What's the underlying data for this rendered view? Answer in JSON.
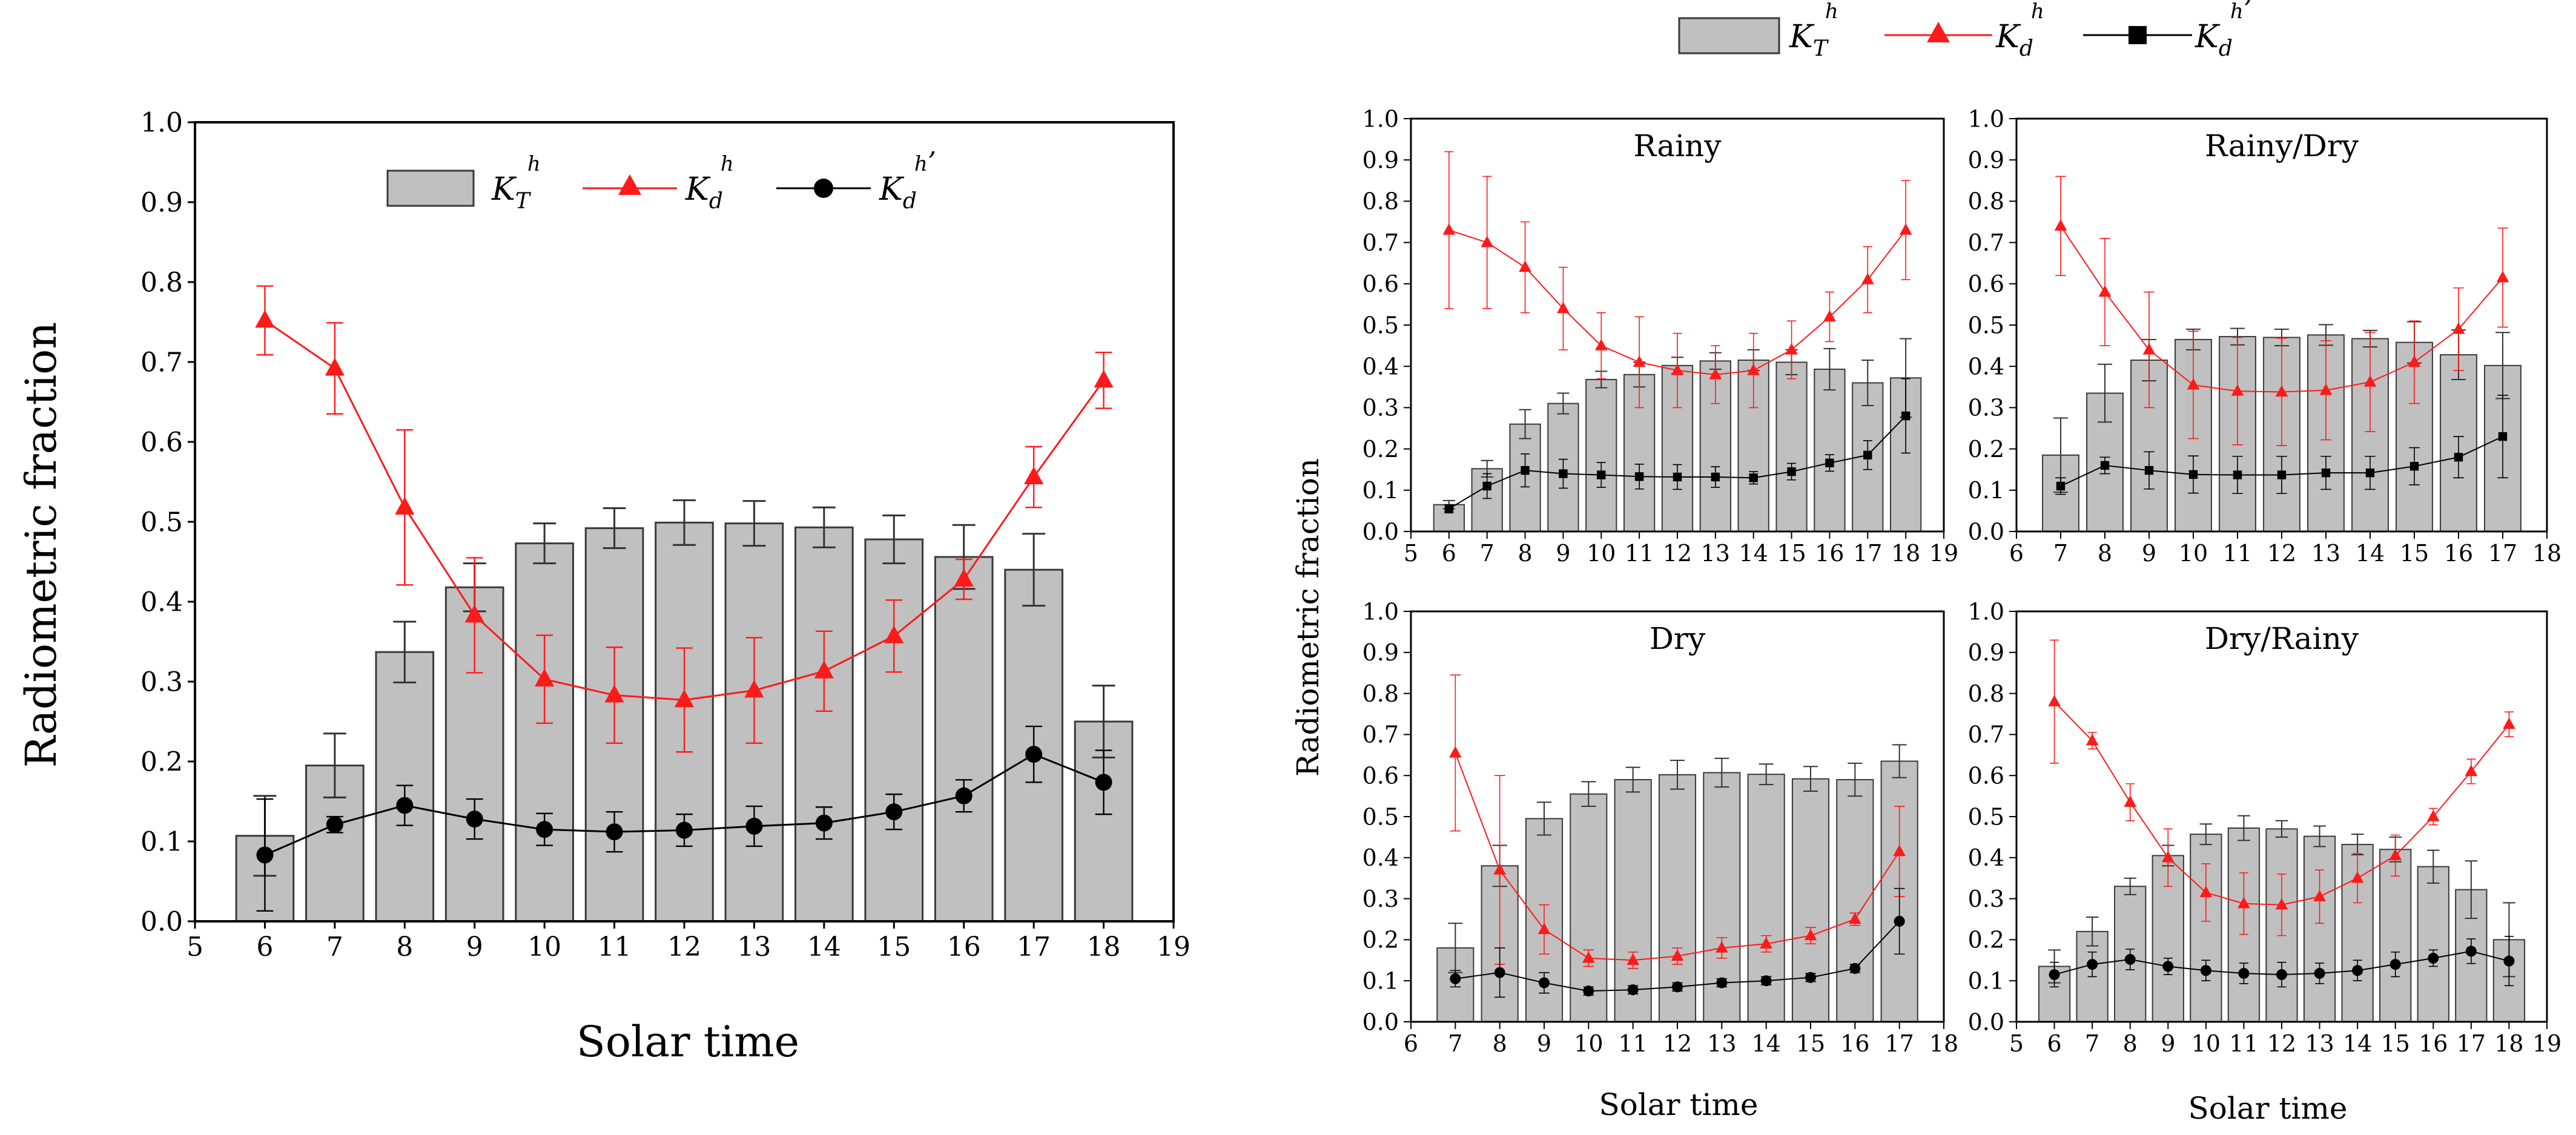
{
  "legend": {
    "kt_main": "K",
    "kt_sub": "T",
    "kt_sup": "h",
    "kd_main": "K",
    "kd_sub": "d",
    "kd_sup": "h",
    "kd2_main": "K",
    "kd2_sub": "d",
    "kd2_sup": "h",
    "prime": "’"
  },
  "colors": {
    "bar_fill": "#c0c0c0",
    "bar_stroke": "#3a3a3a",
    "kd_color": "#ff1a1a",
    "kd2_color": "#000000"
  },
  "chart_data": [
    {
      "type": "bar",
      "id": "overall",
      "title": "",
      "xlabel": "Solar time",
      "ylabel": "Radiometric fraction",
      "xlim": [
        5,
        19
      ],
      "ylim": [
        0.0,
        1.0
      ],
      "xticks": [
        5,
        6,
        7,
        8,
        9,
        10,
        11,
        12,
        13,
        14,
        15,
        16,
        17,
        18,
        19
      ],
      "yticks": [
        "0.0",
        "0.1",
        "0.2",
        "0.3",
        "0.4",
        "0.5",
        "0.6",
        "0.7",
        "0.8",
        "0.9",
        "1.0"
      ],
      "legend_position": "top-center",
      "series": [
        {
          "name": "KT",
          "kind": "bar",
          "x": [
            6,
            7,
            8,
            9,
            10,
            11,
            12,
            13,
            14,
            15,
            16,
            17,
            18
          ],
          "values": [
            0.107,
            0.195,
            0.337,
            0.418,
            0.473,
            0.492,
            0.499,
            0.498,
            0.493,
            0.478,
            0.456,
            0.44,
            0.25
          ],
          "err": [
            0.05,
            0.04,
            0.038,
            0.03,
            0.025,
            0.025,
            0.028,
            0.028,
            0.025,
            0.03,
            0.04,
            0.045,
            0.045
          ]
        },
        {
          "name": "Kd",
          "kind": "line",
          "marker": "triangle",
          "x": [
            6,
            7,
            8,
            9,
            10,
            11,
            12,
            13,
            14,
            15,
            16,
            17,
            18
          ],
          "values": [
            0.752,
            0.692,
            0.518,
            0.383,
            0.303,
            0.283,
            0.277,
            0.289,
            0.313,
            0.357,
            0.428,
            0.556,
            0.677
          ],
          "err": [
            0.043,
            0.057,
            0.097,
            0.072,
            0.055,
            0.06,
            0.065,
            0.066,
            0.05,
            0.045,
            0.025,
            0.038,
            0.035
          ]
        },
        {
          "name": "Kd'",
          "kind": "line",
          "marker": "circle",
          "x": [
            6,
            7,
            8,
            9,
            10,
            11,
            12,
            13,
            14,
            15,
            16,
            17,
            18
          ],
          "values": [
            0.083,
            0.121,
            0.145,
            0.128,
            0.115,
            0.112,
            0.114,
            0.119,
            0.123,
            0.137,
            0.157,
            0.209,
            0.174
          ],
          "err": [
            0.07,
            0.01,
            0.025,
            0.025,
            0.02,
            0.025,
            0.02,
            0.025,
            0.02,
            0.022,
            0.02,
            0.035,
            0.04
          ]
        }
      ]
    },
    {
      "type": "bar",
      "id": "rainy",
      "title": "Rainy",
      "xlabel": "",
      "ylabel": "",
      "xlim": [
        5,
        19
      ],
      "ylim": [
        0.0,
        1.0
      ],
      "xticks": [
        5,
        6,
        7,
        8,
        9,
        10,
        11,
        12,
        13,
        14,
        15,
        16,
        17,
        18,
        19
      ],
      "yticks": [
        "0.0",
        "0.1",
        "0.2",
        "0.3",
        "0.4",
        "0.5",
        "0.6",
        "0.7",
        "0.8",
        "0.9",
        "1.0"
      ],
      "series": [
        {
          "name": "KT",
          "kind": "bar",
          "x": [
            6,
            7,
            8,
            9,
            10,
            11,
            12,
            13,
            14,
            15,
            16,
            17,
            18
          ],
          "values": [
            0.065,
            0.152,
            0.26,
            0.31,
            0.368,
            0.38,
            0.402,
            0.413,
            0.415,
            0.41,
            0.393,
            0.36,
            0.372
          ],
          "err": [
            0.01,
            0.02,
            0.035,
            0.025,
            0.02,
            0.03,
            0.02,
            0.02,
            0.025,
            0.03,
            0.05,
            0.055,
            0.095
          ]
        },
        {
          "name": "Kd",
          "kind": "line",
          "marker": "triangle",
          "x": [
            6,
            7,
            8,
            9,
            10,
            11,
            12,
            13,
            14,
            15,
            16,
            17,
            18
          ],
          "values": [
            0.73,
            0.7,
            0.64,
            0.54,
            0.45,
            0.41,
            0.39,
            0.38,
            0.39,
            0.44,
            0.52,
            0.61,
            0.73
          ],
          "err": [
            0.19,
            0.16,
            0.11,
            0.1,
            0.08,
            0.11,
            0.09,
            0.07,
            0.09,
            0.07,
            0.06,
            0.08,
            0.12
          ]
        },
        {
          "name": "Kd'",
          "kind": "line",
          "marker": "square",
          "x": [
            6,
            7,
            8,
            9,
            10,
            11,
            12,
            13,
            14,
            15,
            16,
            17,
            18
          ],
          "values": [
            0.055,
            0.11,
            0.148,
            0.14,
            0.137,
            0.133,
            0.132,
            0.132,
            0.13,
            0.145,
            0.166,
            0.185,
            0.28
          ],
          "err": [
            0.01,
            0.03,
            0.04,
            0.035,
            0.03,
            0.03,
            0.03,
            0.025,
            0.015,
            0.02,
            0.02,
            0.035,
            0.09
          ]
        }
      ]
    },
    {
      "type": "bar",
      "id": "rainy-dry",
      "title": "Rainy/Dry",
      "xlabel": "",
      "ylabel": "",
      "xlim": [
        6,
        18
      ],
      "ylim": [
        0.0,
        1.0
      ],
      "xticks": [
        6,
        7,
        8,
        9,
        10,
        11,
        12,
        13,
        14,
        15,
        16,
        17,
        18
      ],
      "yticks": [
        "0.0",
        "0.1",
        "0.2",
        "0.3",
        "0.4",
        "0.5",
        "0.6",
        "0.7",
        "0.8",
        "0.9",
        "1.0"
      ],
      "series": [
        {
          "name": "KT",
          "kind": "bar",
          "x": [
            7,
            8,
            9,
            10,
            11,
            12,
            13,
            14,
            15,
            16,
            17
          ],
          "values": [
            0.185,
            0.335,
            0.415,
            0.465,
            0.472,
            0.47,
            0.476,
            0.467,
            0.458,
            0.428,
            0.402
          ],
          "err": [
            0.09,
            0.07,
            0.05,
            0.025,
            0.02,
            0.02,
            0.025,
            0.02,
            0.05,
            0.06,
            0.08
          ]
        },
        {
          "name": "Kd",
          "kind": "line",
          "marker": "triangle",
          "x": [
            7,
            8,
            9,
            10,
            11,
            12,
            13,
            14,
            15,
            16,
            17
          ],
          "values": [
            0.74,
            0.58,
            0.44,
            0.355,
            0.34,
            0.338,
            0.342,
            0.362,
            0.41,
            0.49,
            0.615
          ],
          "err": [
            0.12,
            0.13,
            0.14,
            0.13,
            0.13,
            0.13,
            0.12,
            0.12,
            0.1,
            0.1,
            0.12
          ]
        },
        {
          "name": "Kd'",
          "kind": "line",
          "marker": "square",
          "x": [
            7,
            8,
            9,
            10,
            11,
            12,
            13,
            14,
            15,
            16,
            17
          ],
          "values": [
            0.11,
            0.16,
            0.148,
            0.138,
            0.137,
            0.137,
            0.142,
            0.142,
            0.158,
            0.18,
            0.23
          ],
          "err": [
            0.02,
            0.02,
            0.045,
            0.045,
            0.045,
            0.045,
            0.04,
            0.04,
            0.045,
            0.05,
            0.1
          ]
        }
      ]
    },
    {
      "type": "bar",
      "id": "dry",
      "title": "Dry",
      "xlabel": "Solar time",
      "ylabel": "",
      "xlim": [
        6,
        18
      ],
      "ylim": [
        0.0,
        1.0
      ],
      "xticks": [
        6,
        7,
        8,
        9,
        10,
        11,
        12,
        13,
        14,
        15,
        16,
        17,
        18
      ],
      "yticks": [
        "0.0",
        "0.1",
        "0.2",
        "0.3",
        "0.4",
        "0.5",
        "0.6",
        "0.7",
        "0.8",
        "0.9",
        "1.0"
      ],
      "series": [
        {
          "name": "KT",
          "kind": "bar",
          "x": [
            7,
            8,
            9,
            10,
            11,
            12,
            13,
            14,
            15,
            16,
            17
          ],
          "values": [
            0.18,
            0.38,
            0.495,
            0.555,
            0.59,
            0.602,
            0.607,
            0.603,
            0.592,
            0.59,
            0.635
          ],
          "err": [
            0.06,
            0.05,
            0.04,
            0.03,
            0.03,
            0.035,
            0.035,
            0.025,
            0.03,
            0.04,
            0.04
          ]
        },
        {
          "name": "Kd",
          "kind": "line",
          "marker": "triangle",
          "x": [
            7,
            8,
            9,
            10,
            11,
            12,
            13,
            14,
            15,
            16,
            17
          ],
          "values": [
            0.655,
            0.37,
            0.225,
            0.155,
            0.15,
            0.16,
            0.18,
            0.19,
            0.21,
            0.25,
            0.415
          ],
          "err": [
            0.19,
            0.23,
            0.06,
            0.02,
            0.02,
            0.02,
            0.025,
            0.02,
            0.02,
            0.015,
            0.11
          ]
        },
        {
          "name": "Kd'",
          "kind": "line",
          "marker": "circle",
          "x": [
            7,
            8,
            9,
            10,
            11,
            12,
            13,
            14,
            15,
            16,
            17
          ],
          "values": [
            0.105,
            0.12,
            0.095,
            0.075,
            0.078,
            0.085,
            0.095,
            0.1,
            0.108,
            0.13,
            0.245
          ],
          "err": [
            0.02,
            0.06,
            0.025,
            0.01,
            0.01,
            0.01,
            0.01,
            0.01,
            0.01,
            0.01,
            0.08
          ]
        }
      ]
    },
    {
      "type": "bar",
      "id": "dry-rainy",
      "title": "Dry/Rainy",
      "xlabel": "Solar time",
      "ylabel": "",
      "xlim": [
        5,
        19
      ],
      "ylim": [
        0.0,
        1.0
      ],
      "xticks": [
        5,
        6,
        7,
        8,
        9,
        10,
        11,
        12,
        13,
        14,
        15,
        16,
        17,
        18,
        19
      ],
      "yticks": [
        "0.0",
        "0.1",
        "0.2",
        "0.3",
        "0.4",
        "0.5",
        "0.6",
        "0.7",
        "0.8",
        "0.9",
        "1.0"
      ],
      "series": [
        {
          "name": "KT",
          "kind": "bar",
          "x": [
            6,
            7,
            8,
            9,
            10,
            11,
            12,
            13,
            14,
            15,
            16,
            17,
            18
          ],
          "values": [
            0.135,
            0.22,
            0.33,
            0.405,
            0.457,
            0.472,
            0.47,
            0.452,
            0.432,
            0.42,
            0.378,
            0.322,
            0.2
          ],
          "err": [
            0.04,
            0.035,
            0.02,
            0.025,
            0.025,
            0.03,
            0.02,
            0.025,
            0.025,
            0.03,
            0.04,
            0.07,
            0.09
          ]
        },
        {
          "name": "Kd",
          "kind": "line",
          "marker": "triangle",
          "x": [
            6,
            7,
            8,
            9,
            10,
            11,
            12,
            13,
            14,
            15,
            16,
            17,
            18
          ],
          "values": [
            0.78,
            0.685,
            0.535,
            0.4,
            0.315,
            0.288,
            0.285,
            0.305,
            0.35,
            0.405,
            0.5,
            0.61,
            0.725
          ],
          "err": [
            0.15,
            0.02,
            0.045,
            0.07,
            0.07,
            0.075,
            0.075,
            0.065,
            0.06,
            0.05,
            0.02,
            0.03,
            0.03
          ]
        },
        {
          "name": "Kd'",
          "kind": "line",
          "marker": "circle",
          "x": [
            6,
            7,
            8,
            9,
            10,
            11,
            12,
            13,
            14,
            15,
            16,
            17,
            18
          ],
          "values": [
            0.115,
            0.14,
            0.152,
            0.135,
            0.125,
            0.118,
            0.115,
            0.118,
            0.125,
            0.14,
            0.155,
            0.172,
            0.148
          ],
          "err": [
            0.03,
            0.03,
            0.025,
            0.02,
            0.025,
            0.025,
            0.03,
            0.025,
            0.025,
            0.03,
            0.02,
            0.03,
            0.06
          ]
        }
      ]
    }
  ],
  "right_ylabel": "Radiometric fraction"
}
